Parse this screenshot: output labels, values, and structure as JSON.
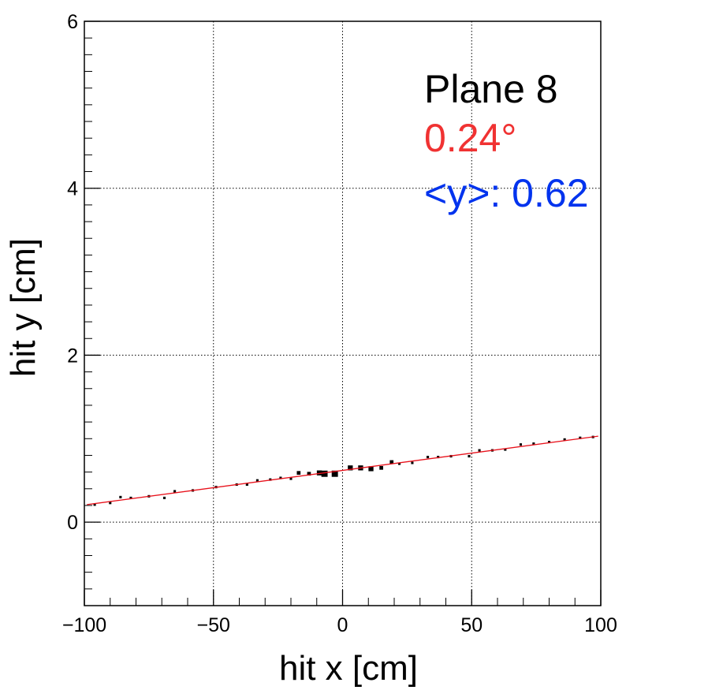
{
  "chart_data": {
    "type": "scatter",
    "title": "",
    "xlabel": "hit x [cm]",
    "ylabel": "hit y [cm]",
    "xlim": [
      -100,
      100
    ],
    "ylim": [
      -1,
      6
    ],
    "x_ticks": [
      -100,
      -50,
      0,
      50,
      100
    ],
    "x_tick_labels": [
      "−100",
      "−50",
      "0",
      "50",
      "100"
    ],
    "y_ticks": [
      0,
      2,
      4,
      6
    ],
    "y_tick_labels": [
      "0",
      "2",
      "4",
      "6"
    ],
    "grid": true,
    "annotations": {
      "plane": "Plane 8",
      "angle": "0.24°",
      "mean_y": "<y>: 0.62"
    },
    "colors": {
      "plane": "#000000",
      "angle": "#f03232",
      "mean_y": "#0033ee",
      "fit_line": "#e8111b",
      "points": "#000000"
    },
    "fit_line": {
      "x": [
        -99,
        99
      ],
      "y": [
        0.21,
        1.03
      ]
    },
    "points": [
      {
        "x": -96,
        "y": 0.21,
        "w": 1
      },
      {
        "x": -90,
        "y": 0.23,
        "w": 1
      },
      {
        "x": -86,
        "y": 0.3,
        "w": 1
      },
      {
        "x": -82,
        "y": 0.29,
        "w": 1
      },
      {
        "x": -75,
        "y": 0.31,
        "w": 1
      },
      {
        "x": -69,
        "y": 0.29,
        "w": 1
      },
      {
        "x": -65,
        "y": 0.37,
        "w": 1
      },
      {
        "x": -58,
        "y": 0.38,
        "w": 1
      },
      {
        "x": -49,
        "y": 0.42,
        "w": 1
      },
      {
        "x": -41,
        "y": 0.45,
        "w": 1
      },
      {
        "x": -37,
        "y": 0.45,
        "w": 1
      },
      {
        "x": -33,
        "y": 0.5,
        "w": 1
      },
      {
        "x": -28,
        "y": 0.51,
        "w": 1
      },
      {
        "x": -24,
        "y": 0.53,
        "w": 1
      },
      {
        "x": -20,
        "y": 0.52,
        "w": 1
      },
      {
        "x": -17,
        "y": 0.59,
        "w": 2
      },
      {
        "x": -13,
        "y": 0.58,
        "w": 2
      },
      {
        "x": -9,
        "y": 0.59,
        "w": 3
      },
      {
        "x": -7,
        "y": 0.58,
        "w": 4
      },
      {
        "x": -3,
        "y": 0.58,
        "w": 4
      },
      {
        "x": 3,
        "y": 0.65,
        "w": 3
      },
      {
        "x": 7,
        "y": 0.65,
        "w": 3
      },
      {
        "x": 11,
        "y": 0.64,
        "w": 3
      },
      {
        "x": 15,
        "y": 0.65,
        "w": 2
      },
      {
        "x": 19,
        "y": 0.72,
        "w": 2
      },
      {
        "x": 22,
        "y": 0.7,
        "w": 1
      },
      {
        "x": 27,
        "y": 0.71,
        "w": 1
      },
      {
        "x": 33,
        "y": 0.78,
        "w": 1
      },
      {
        "x": 37,
        "y": 0.78,
        "w": 1
      },
      {
        "x": 42,
        "y": 0.79,
        "w": 1
      },
      {
        "x": 49,
        "y": 0.79,
        "w": 1
      },
      {
        "x": 53,
        "y": 0.86,
        "w": 1
      },
      {
        "x": 58,
        "y": 0.86,
        "w": 1
      },
      {
        "x": 63,
        "y": 0.87,
        "w": 1
      },
      {
        "x": 69,
        "y": 0.93,
        "w": 1
      },
      {
        "x": 74,
        "y": 0.94,
        "w": 1
      },
      {
        "x": 80,
        "y": 0.96,
        "w": 1
      },
      {
        "x": 86,
        "y": 0.99,
        "w": 1
      },
      {
        "x": 92,
        "y": 1.01,
        "w": 1
      },
      {
        "x": 97,
        "y": 1.02,
        "w": 1
      }
    ]
  }
}
